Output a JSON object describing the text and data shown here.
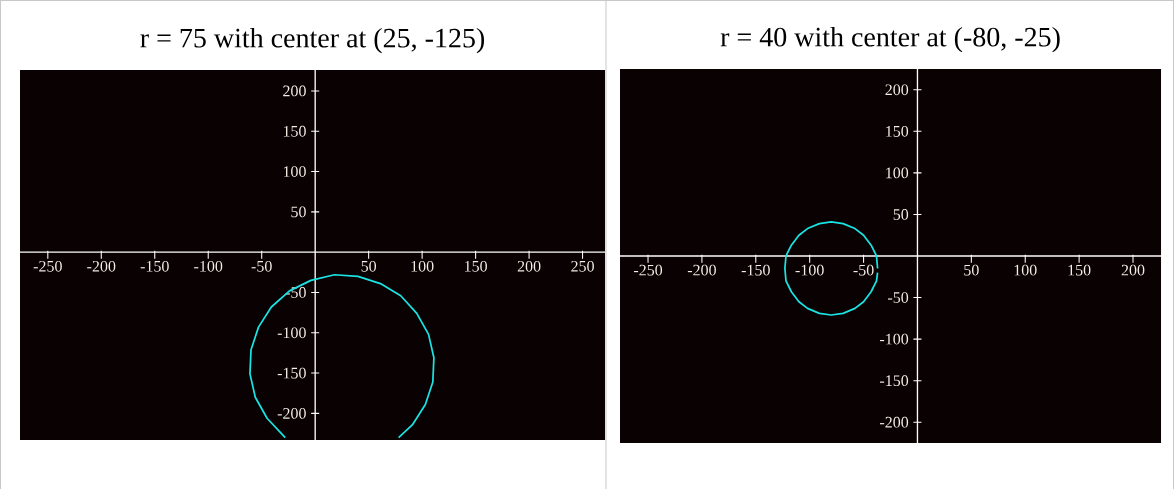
{
  "chart_data": [
    {
      "type": "line",
      "title": "r = 75 with center at (25, -125)",
      "color": "#1ae3e3",
      "x": [
        78,
        91,
        103,
        110,
        111,
        106,
        95,
        80,
        61,
        40,
        18,
        -4,
        -24,
        -41,
        -53,
        -60,
        -61,
        -56,
        -45,
        -28
      ],
      "values": [
        -230,
        -214,
        -189,
        -161,
        -131,
        -102,
        -76,
        -54,
        -39,
        -30,
        -28,
        -35,
        -48,
        -68,
        -93,
        -121,
        -151,
        -180,
        -206,
        -230
      ],
      "xlim": [
        -276,
        271
      ],
      "ylim": [
        -233,
        226
      ],
      "xticks": [
        -250,
        -200,
        -150,
        -100,
        -50,
        50,
        100,
        150,
        200,
        250
      ],
      "yticks": [
        -200,
        -150,
        -100,
        -50,
        50,
        100,
        150,
        200
      ]
    },
    {
      "type": "line",
      "title": "r = 40 with center at (-80, -25)",
      "color": "#1ae3e3",
      "x": [
        -37,
        -38,
        -43,
        -50,
        -58,
        -69,
        -80,
        -91,
        -102,
        -110,
        -117,
        -122,
        -123,
        -122,
        -117,
        -110,
        -102,
        -91,
        -80,
        -69,
        -58,
        -50,
        -43,
        -38,
        -37
      ],
      "values": [
        -15,
        0,
        13,
        25,
        33,
        39,
        41,
        39,
        33,
        25,
        13,
        0,
        -15,
        -30,
        -43,
        -55,
        -63,
        -69,
        -71,
        -69,
        -63,
        -55,
        -43,
        -30,
        -20
      ],
      "xlim": [
        -276,
        226
      ],
      "ylim": [
        -225,
        225
      ],
      "xticks": [
        -250,
        -200,
        -150,
        -100,
        -50,
        50,
        100,
        150,
        200
      ],
      "yticks": [
        -200,
        -150,
        -100,
        -50,
        50,
        100,
        150,
        200
      ]
    }
  ]
}
